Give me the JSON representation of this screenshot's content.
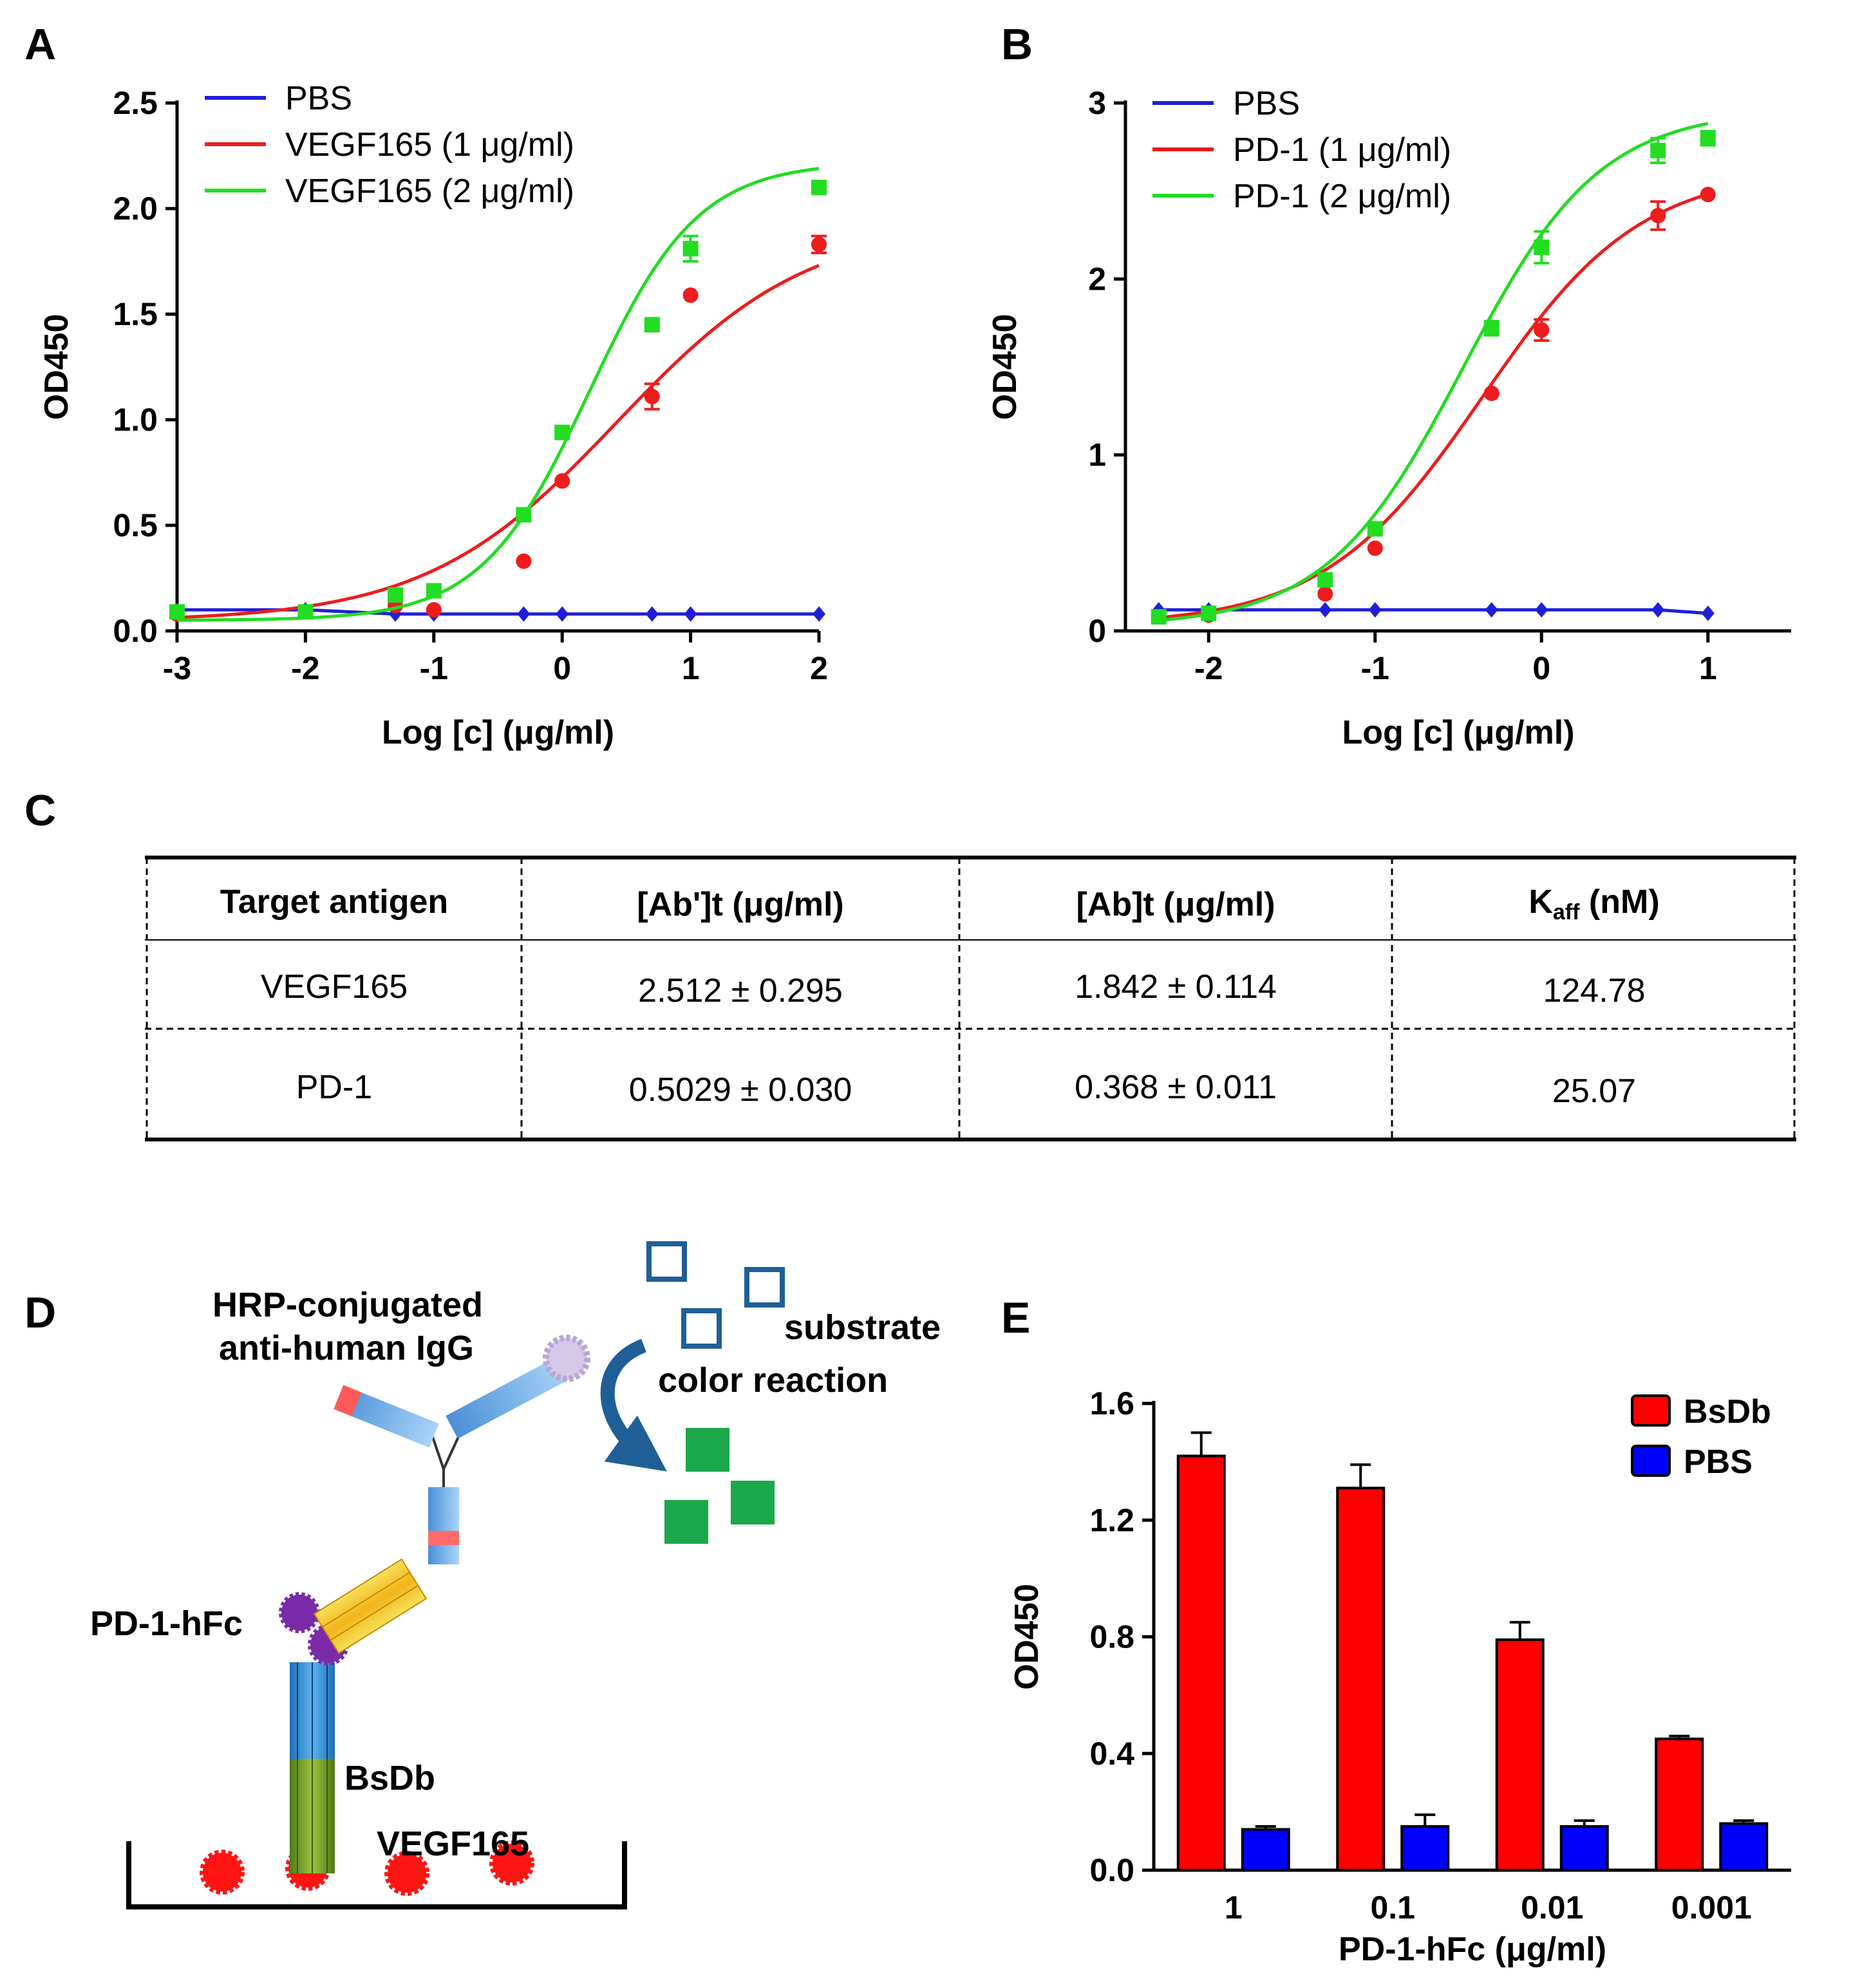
{
  "panels": {
    "A": {
      "letter": "A"
    },
    "B": {
      "letter": "B"
    },
    "C": {
      "letter": "C"
    },
    "D": {
      "letter": "D"
    },
    "E": {
      "letter": "E"
    }
  },
  "chart_data": [
    {
      "id": "A",
      "type": "line",
      "xlabel": "Log [c] (μg/ml)",
      "ylabel": "OD450",
      "xlim": [
        -3,
        2
      ],
      "ylim": [
        0,
        2.5
      ],
      "xticks": [
        -3,
        -2,
        -1,
        0,
        1,
        2
      ],
      "yticks": [
        0.0,
        0.5,
        1.0,
        1.5,
        2.0,
        2.5
      ],
      "ytick_labels": [
        "0.0",
        "0.5",
        "1.0",
        "1.5",
        "2.0",
        "2.5"
      ],
      "legend": "top-left",
      "series": [
        {
          "name": "PBS",
          "color": "#1f1fd8",
          "marker": "diamond",
          "x": [
            -3,
            -2,
            -1.3,
            -1,
            -0.3,
            0,
            0.7,
            1,
            2
          ],
          "y": [
            0.1,
            0.1,
            0.08,
            0.08,
            0.08,
            0.08,
            0.08,
            0.08,
            0.08
          ],
          "err": [
            0,
            0,
            0,
            0,
            0,
            0,
            0,
            0,
            0
          ]
        },
        {
          "name": "VEGF165 (1 μg/ml)",
          "color": "#ee1c1c",
          "marker": "circle",
          "x": [
            -3,
            -2,
            -1.3,
            -1,
            -0.3,
            0,
            0.7,
            1,
            2
          ],
          "y": [
            0.08,
            0.09,
            0.12,
            0.1,
            0.33,
            0.71,
            1.11,
            1.59,
            1.83
          ],
          "err": [
            0,
            0,
            0,
            0,
            0,
            0,
            0.06,
            0,
            0.04
          ]
        },
        {
          "name": "VEGF165 (2 μg/ml)",
          "color": "#22dd22",
          "marker": "square",
          "x": [
            -3,
            -2,
            -1.3,
            -1,
            -0.3,
            0,
            0.7,
            1,
            2
          ],
          "y": [
            0.09,
            0.09,
            0.17,
            0.19,
            0.55,
            0.94,
            1.45,
            1.81,
            2.1
          ],
          "err": [
            0,
            0,
            0,
            0,
            0,
            0,
            0,
            0.06,
            0
          ]
        }
      ]
    },
    {
      "id": "B",
      "type": "line",
      "xlabel": "Log [c] (μg/ml)",
      "ylabel": "OD450",
      "xlim": [
        -2.5,
        1.5
      ],
      "ylim": [
        0,
        3
      ],
      "xticks": [
        -2,
        -1,
        0,
        1
      ],
      "yticks": [
        0,
        1,
        2,
        3
      ],
      "ytick_labels": [
        "0",
        "1",
        "2",
        "3"
      ],
      "legend": "top-left",
      "series": [
        {
          "name": "PBS",
          "color": "#1f1fd8",
          "marker": "diamond",
          "x": [
            -2.3,
            -2,
            -1.3,
            -1,
            -0.3,
            0,
            0.7,
            1
          ],
          "y": [
            0.12,
            0.12,
            0.12,
            0.12,
            0.12,
            0.12,
            0.12,
            0.1
          ],
          "err": [
            0,
            0,
            0,
            0,
            0,
            0,
            0,
            0
          ]
        },
        {
          "name": "PD-1 (1 μg/ml)",
          "color": "#ee1c1c",
          "marker": "circle",
          "x": [
            -2.3,
            -2,
            -1.3,
            -1,
            -0.3,
            0,
            0.7,
            1
          ],
          "y": [
            0.08,
            0.09,
            0.21,
            0.47,
            1.35,
            1.71,
            2.36,
            2.48
          ],
          "err": [
            0,
            0,
            0,
            0,
            0,
            0.06,
            0.08,
            0
          ]
        },
        {
          "name": "PD-1 (2 μg/ml)",
          "color": "#22dd22",
          "marker": "square",
          "x": [
            -2.3,
            -2,
            -1.3,
            -1,
            -0.3,
            0,
            0.7,
            1
          ],
          "y": [
            0.08,
            0.1,
            0.29,
            0.58,
            1.72,
            2.18,
            2.73,
            2.8
          ],
          "err": [
            0,
            0,
            0,
            0,
            0.04,
            0.09,
            0.07,
            0.04
          ]
        }
      ]
    },
    {
      "id": "E",
      "type": "bar",
      "xlabel": "PD-1-hFc (μg/ml)",
      "ylabel": "OD450",
      "ylim": [
        0,
        1.6
      ],
      "yticks": [
        0.0,
        0.4,
        0.8,
        1.2,
        1.6
      ],
      "ytick_labels": [
        "0.0",
        "0.4",
        "0.8",
        "1.2",
        "1.6"
      ],
      "categories": [
        "1",
        "0.1",
        "0.01",
        "0.001"
      ],
      "legend": "top-right",
      "series": [
        {
          "name": "BsDb",
          "color": "#ff0000",
          "values": [
            1.42,
            1.31,
            0.79,
            0.45
          ],
          "err": [
            0.08,
            0.08,
            0.06,
            0.01
          ]
        },
        {
          "name": "PBS",
          "color": "#0000ff",
          "values": [
            0.14,
            0.15,
            0.15,
            0.16
          ],
          "err": [
            0.01,
            0.04,
            0.02,
            0.01
          ]
        }
      ]
    }
  ],
  "table": {
    "headers": [
      "Target antigen",
      "[Ab']t (μg/ml)",
      "[Ab]t (μg/ml)",
      "K",
      "aff",
      " (nM)"
    ],
    "rows": [
      [
        "VEGF165",
        "2.512 ± 0.295",
        "1.842 ± 0.114",
        "124.78"
      ],
      [
        "PD-1",
        "0.5029 ± 0.030",
        "0.368 ± 0.011",
        "25.07"
      ]
    ]
  },
  "diagram": {
    "hrp_line1": "HRP-conjugated",
    "hrp_line2": "anti-human IgG",
    "substrate": "substrate",
    "color_reaction": "color reaction",
    "pd1_hfc": "PD-1-hFc",
    "bsdb": "BsDb",
    "vegf165": "VEGF165",
    "colors": {
      "substrate": "#1f5f96",
      "product": "#1aa84a",
      "pd1": "#7a2aa8",
      "vegf": "#ff0000",
      "arrow": "#1f5f96"
    }
  }
}
